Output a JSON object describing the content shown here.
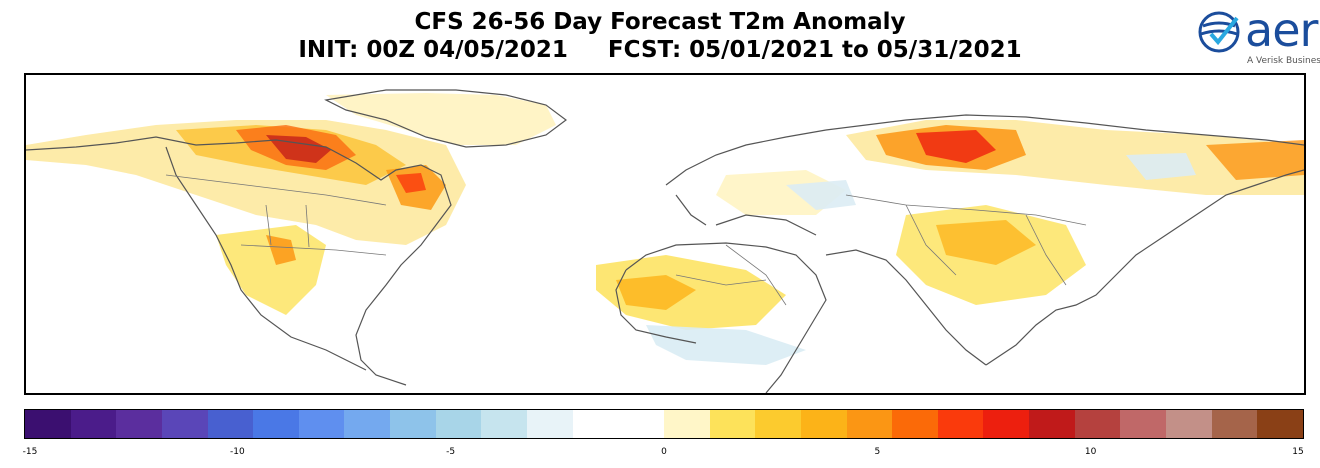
{
  "title": {
    "line1": "CFS 26-56 Day Forecast T2m Anomaly",
    "line2": "INIT: 00Z 04/05/2021     FCST: 05/01/2021 to 05/31/2021"
  },
  "logo": {
    "word": "aer",
    "tagline": "A Verisk Busines",
    "icon": "globe-check-icon"
  },
  "map": {
    "region": "Northern Hemisphere (North America, Atlantic, Europe, Africa, Asia)",
    "anomaly_regions": [
      {
        "name": "northern-canada",
        "level": 6
      },
      {
        "name": "hudson-bay",
        "level": 9
      },
      {
        "name": "quebec",
        "level": 7
      },
      {
        "name": "alaska",
        "level": 3
      },
      {
        "name": "western-us",
        "level": 4
      },
      {
        "name": "sahara",
        "level": 3
      },
      {
        "name": "northern-siberia",
        "level": 8
      },
      {
        "name": "eastern-siberia",
        "level": 5
      },
      {
        "name": "central-asia",
        "level": 3
      },
      {
        "name": "sahel",
        "level": -2
      }
    ]
  },
  "colorbar": {
    "colors": [
      "#3b0f70",
      "#4b1c8a",
      "#5b2e9e",
      "#5a46b8",
      "#4860d0",
      "#4a78e6",
      "#5f8fef",
      "#74a9ef",
      "#8ec3ea",
      "#a8d5e8",
      "#c6e4ee",
      "#e8f3f8",
      "#ffffff",
      "#ffffff",
      "#fff6c8",
      "#fde25a",
      "#fccb2e",
      "#fcb318",
      "#fb9614",
      "#fb6a08",
      "#fa3a0c",
      "#ed1f0e",
      "#c01a1a",
      "#b5413e",
      "#c06868",
      "#c39088",
      "#a5644a",
      "#8a4016"
    ],
    "ticks": [
      {
        "value": -15,
        "label": "-15"
      },
      {
        "value": -10,
        "label": "-10"
      },
      {
        "value": -5,
        "label": "-5"
      },
      {
        "value": 0,
        "label": "0"
      },
      {
        "value": 5,
        "label": "5"
      },
      {
        "value": 10,
        "label": "10"
      },
      {
        "value": 15,
        "label": "15"
      }
    ],
    "range": [
      -15,
      15
    ]
  }
}
